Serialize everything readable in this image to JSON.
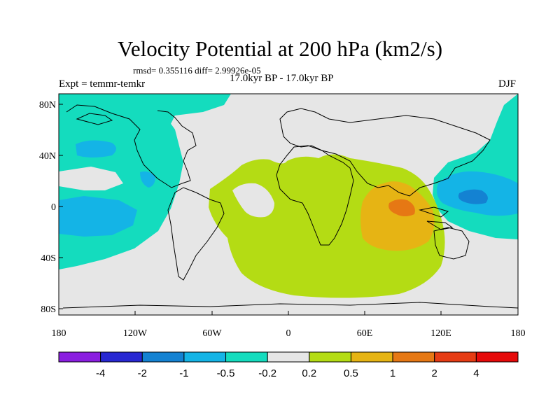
{
  "title": "Velocity Potential at 200 hPa (km2/s)",
  "stats": "rmsd= 0.355116 diff= 2.99926e-05",
  "subtitle": "17.0kyr BP - 17.0kyr BP",
  "experiment": "Expt = temmr-temkr",
  "season": "DJF",
  "lat_labels": [
    "80N",
    "40N",
    "0",
    "40S",
    "80S"
  ],
  "lon_labels": [
    "180",
    "120W",
    "60W",
    "0",
    "60E",
    "120E",
    "180"
  ],
  "colorbar": {
    "colors": [
      "#8a1ee0",
      "#2828d2",
      "#1482d2",
      "#14b4e6",
      "#14dcbe",
      "#e6e6e6",
      "#b4dc14",
      "#e6b414",
      "#e67814",
      "#e63c14",
      "#e60a0a"
    ],
    "labels": [
      "-4",
      "-2",
      "-1",
      "-0.5",
      "-0.2",
      "0.2",
      "0.5",
      "1",
      "2",
      "4"
    ]
  },
  "colors": {
    "background": "#e6e6e6",
    "coastline": "#000000"
  }
}
